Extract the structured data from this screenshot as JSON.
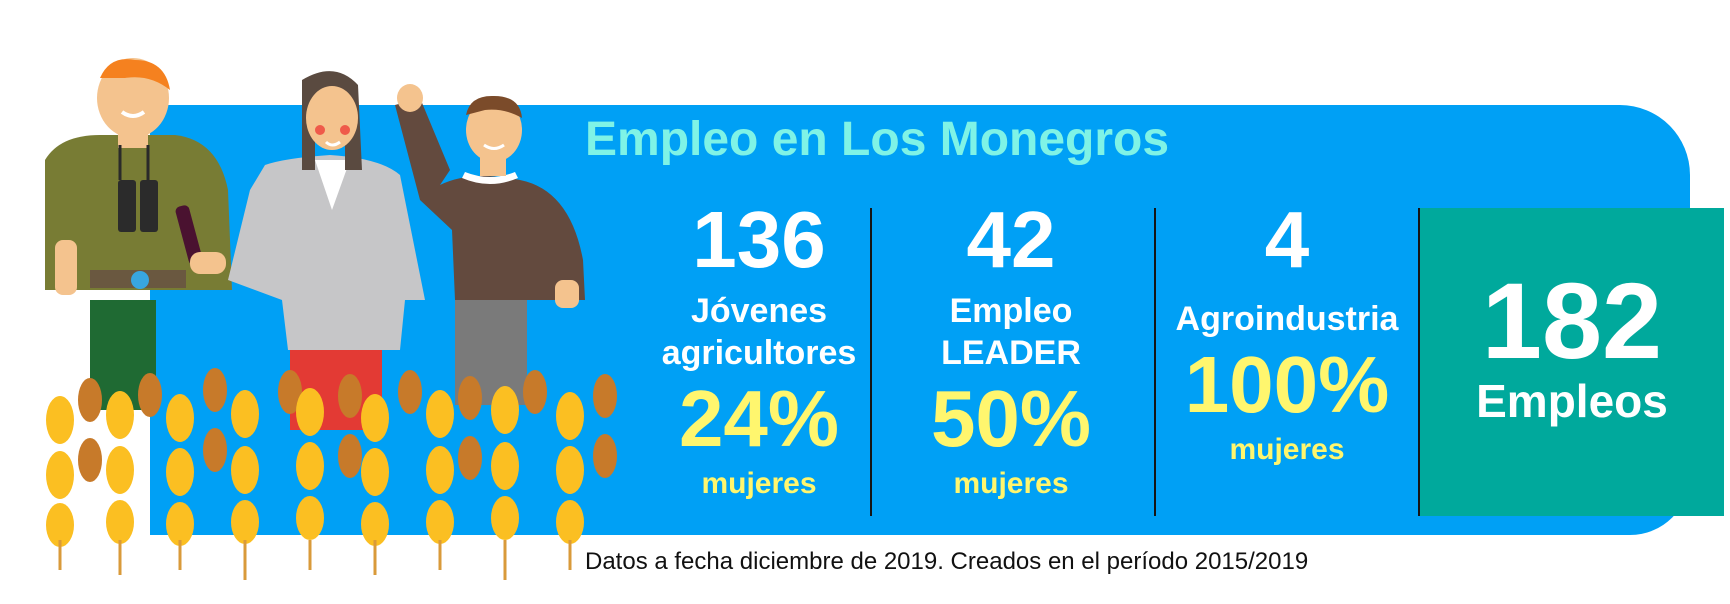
{
  "title": "Empleo en Los Monegros",
  "stats": [
    {
      "value": "136",
      "label_lines": [
        "Jóvenes",
        "agricultores"
      ],
      "percent": "24%",
      "percent_label": "mujeres"
    },
    {
      "value": "42",
      "label_lines": [
        "Empleo",
        "LEADER"
      ],
      "percent": "50%",
      "percent_label": "mujeres"
    },
    {
      "value": "4",
      "label_lines": [
        "Agroindustria"
      ],
      "percent": "100%",
      "percent_label": "mujeres"
    }
  ],
  "total": {
    "value": "182",
    "label": "Empleos"
  },
  "footnote": "Datos a fecha diciembre de 2019. Creados en el período 2015/2019",
  "colors": {
    "panel": "#00a0f5",
    "total_box": "#00a99c",
    "title": "#7ff3e6",
    "highlight": "#fff66e"
  },
  "illustration": {
    "people": [
      "person-binoculars",
      "woman-wine",
      "man-waving"
    ],
    "foreground": "wheat-field"
  }
}
